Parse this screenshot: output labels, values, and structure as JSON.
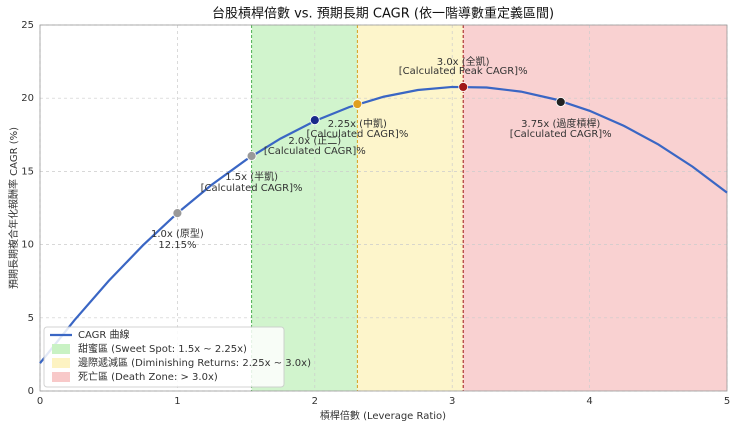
{
  "chart_data": {
    "type": "line",
    "title": "台股槓桿倍數 vs. 預期長期 CAGR (依一階導數重定義區間)",
    "x_label": "槓桿倍數 (Leverage Ratio)",
    "y_label": "預期長期複合年化報酬率 CAGR (%)",
    "x": [
      0,
      0.25,
      0.5,
      0.75,
      1,
      1.25,
      1.5,
      1.75,
      2,
      2.25,
      2.5,
      2.75,
      3,
      3.25,
      3.5,
      3.75,
      4,
      4.25,
      4.5,
      4.75,
      5
    ],
    "series": [
      {
        "name": "CAGR 曲線",
        "color": "#3a66c4",
        "values": [
          1.9,
          4.83,
          7.52,
          9.96,
          12.15,
          14.09,
          15.79,
          17.24,
          18.44,
          19.39,
          20.1,
          20.56,
          20.77,
          20.73,
          20.45,
          19.92,
          19.14,
          18.11,
          16.84,
          15.32,
          13.55
        ]
      }
    ],
    "regions": [
      {
        "name": "甜蜜區 (Sweet Spot: 1.5x ~ 2.25x)",
        "color": "#c9f2c4",
        "line_color": "#4caf50",
        "range": [
          1.54,
          2.31
        ]
      },
      {
        "name": "邊際遞減區 (Diminishing Returns: 2.25x ~ 3.0x)",
        "color": "#fdf3c2",
        "line_color": "#d4a020",
        "range": [
          2.31,
          3.08
        ]
      },
      {
        "name": "死亡區 (Death Zone: > 3.0x)",
        "color": "#f8c9c9",
        "line_color": "#a01818",
        "range": [
          3.08,
          5
        ]
      }
    ],
    "points": [
      {
        "x": 1.0,
        "y": 12.15,
        "color": "#999999",
        "text_color": "#888888",
        "labels": [
          "1.0x (原型)",
          "12.15%"
        ]
      },
      {
        "x": 1.54,
        "y": 16.05,
        "color": "#999999",
        "text_color": "#777777",
        "labels": [
          "1.5x (半凱)",
          "[Calculated CAGR]%"
        ]
      },
      {
        "x": 2.0,
        "y": 18.5,
        "color": "#1a2a8a",
        "text_color": "#1a2a6a",
        "labels": [
          "2.0x (正二)",
          "[Calculated CAGR]%"
        ]
      },
      {
        "x": 2.31,
        "y": 19.6,
        "color": "#e0a020",
        "text_color": "#d0a020",
        "labels": [
          "2.25x (中凱)",
          "[Calculated CAGR]%"
        ]
      },
      {
        "x": 3.08,
        "y": 20.77,
        "color": "#a01818",
        "text_color": "#7a2a2a",
        "labels": [
          "3.0x (全凱)",
          "[Calculated Peak CAGR]%"
        ]
      },
      {
        "x": 3.79,
        "y": 19.74,
        "color": "#222222",
        "text_color": "#222222",
        "labels": [
          "3.75x (過度槓桿)",
          "[Calculated CAGR]%"
        ]
      }
    ],
    "xlim": [
      0,
      5
    ],
    "ylim": [
      0,
      25
    ],
    "xticks": [
      0,
      1,
      2,
      3,
      4,
      5
    ],
    "yticks": [
      0,
      5,
      10,
      15,
      20,
      25
    ],
    "grid": true,
    "legend": "lower left"
  }
}
